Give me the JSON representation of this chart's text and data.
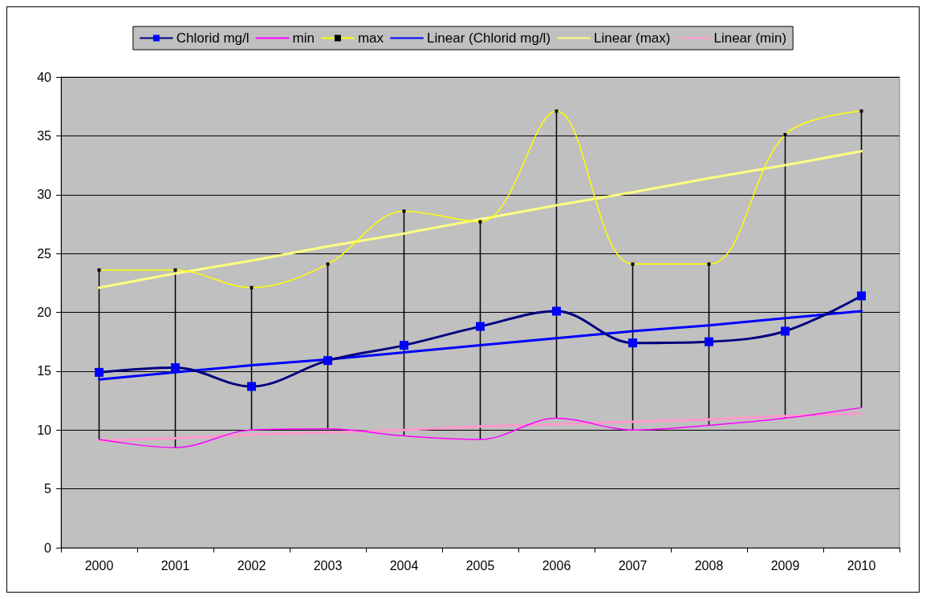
{
  "chart_data": {
    "type": "line",
    "categories": [
      "2000",
      "2001",
      "2002",
      "2003",
      "2004",
      "2005",
      "2006",
      "2007",
      "2008",
      "2009",
      "2010"
    ],
    "series": [
      {
        "name": "Chlorid mg/l",
        "color": "#000080",
        "marker": "square",
        "values": [
          14.9,
          15.3,
          13.7,
          15.9,
          17.2,
          18.8,
          20.1,
          17.4,
          17.5,
          18.4,
          21.4
        ],
        "errors": [
          [
            9.2,
            23.6
          ],
          [
            8.5,
            23.6
          ],
          [
            10.0,
            22.1
          ],
          [
            10.1,
            24.1
          ],
          [
            9.5,
            28.6
          ],
          [
            9.2,
            27.7
          ],
          [
            11.0,
            37.1
          ],
          [
            10.0,
            24.1
          ],
          [
            10.4,
            24.1
          ],
          [
            11.0,
            35.1
          ],
          [
            11.9,
            37.1
          ]
        ]
      },
      {
        "name": "min",
        "color": "#ff00ff",
        "marker": "none",
        "values": [
          9.2,
          8.5,
          10.0,
          10.1,
          9.5,
          9.2,
          11.0,
          10.0,
          10.4,
          11.0,
          11.9
        ]
      },
      {
        "name": "max",
        "color": "#ffff00",
        "marker": "square",
        "values": [
          23.6,
          23.6,
          22.1,
          24.1,
          28.6,
          27.7,
          37.1,
          24.1,
          24.1,
          35.1,
          37.1
        ]
      },
      {
        "name": "Linear (Chlorid mg/l)",
        "color": "#0000ff",
        "marker": "none",
        "values": [
          14.3,
          14.9,
          15.5,
          16.0,
          16.6,
          17.2,
          17.8,
          18.4,
          18.9,
          19.5,
          20.1
        ]
      },
      {
        "name": "Linear (max)",
        "color": "#ffff80",
        "marker": "none",
        "values": [
          22.1,
          23.3,
          24.4,
          25.6,
          26.7,
          27.9,
          29.1,
          30.2,
          31.4,
          32.5,
          33.7
        ]
      },
      {
        "name": "Linear (min)",
        "color": "#ff99cc",
        "marker": "none",
        "values": [
          9.1,
          9.3,
          9.6,
          9.8,
          10.0,
          10.3,
          10.5,
          10.7,
          10.9,
          11.2,
          11.4
        ]
      }
    ],
    "ylim": [
      0,
      40
    ],
    "yticks": [
      0,
      5,
      10,
      15,
      20,
      25,
      30,
      35,
      40
    ],
    "grid": "y",
    "legend": "top"
  }
}
